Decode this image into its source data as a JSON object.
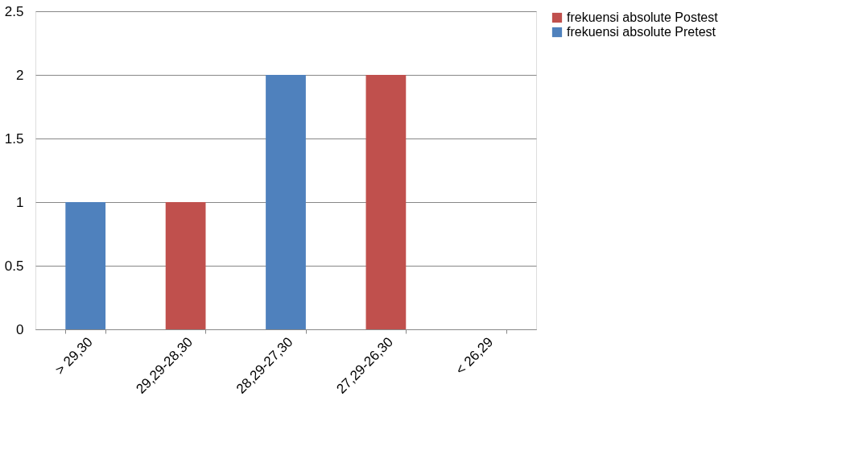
{
  "chart_data": {
    "type": "bar",
    "stacked": true,
    "categories": [
      "> 29,30",
      "29,29-28,30",
      "28,29-27,30",
      "27,29-26,30",
      "< 26,29"
    ],
    "series": [
      {
        "name": "frekuensi absolute Pretest",
        "color": "#4f81bd",
        "values": [
          1,
          0,
          2,
          0,
          0
        ]
      },
      {
        "name": "frekuensi absolute Postest",
        "color": "#c0504d",
        "values": [
          0,
          1,
          0,
          2,
          0
        ]
      }
    ],
    "ylim": [
      0,
      2.5
    ],
    "yticks": [
      0,
      0.5,
      1,
      1.5,
      2,
      2.5
    ],
    "grid": "y",
    "legend": "right"
  }
}
